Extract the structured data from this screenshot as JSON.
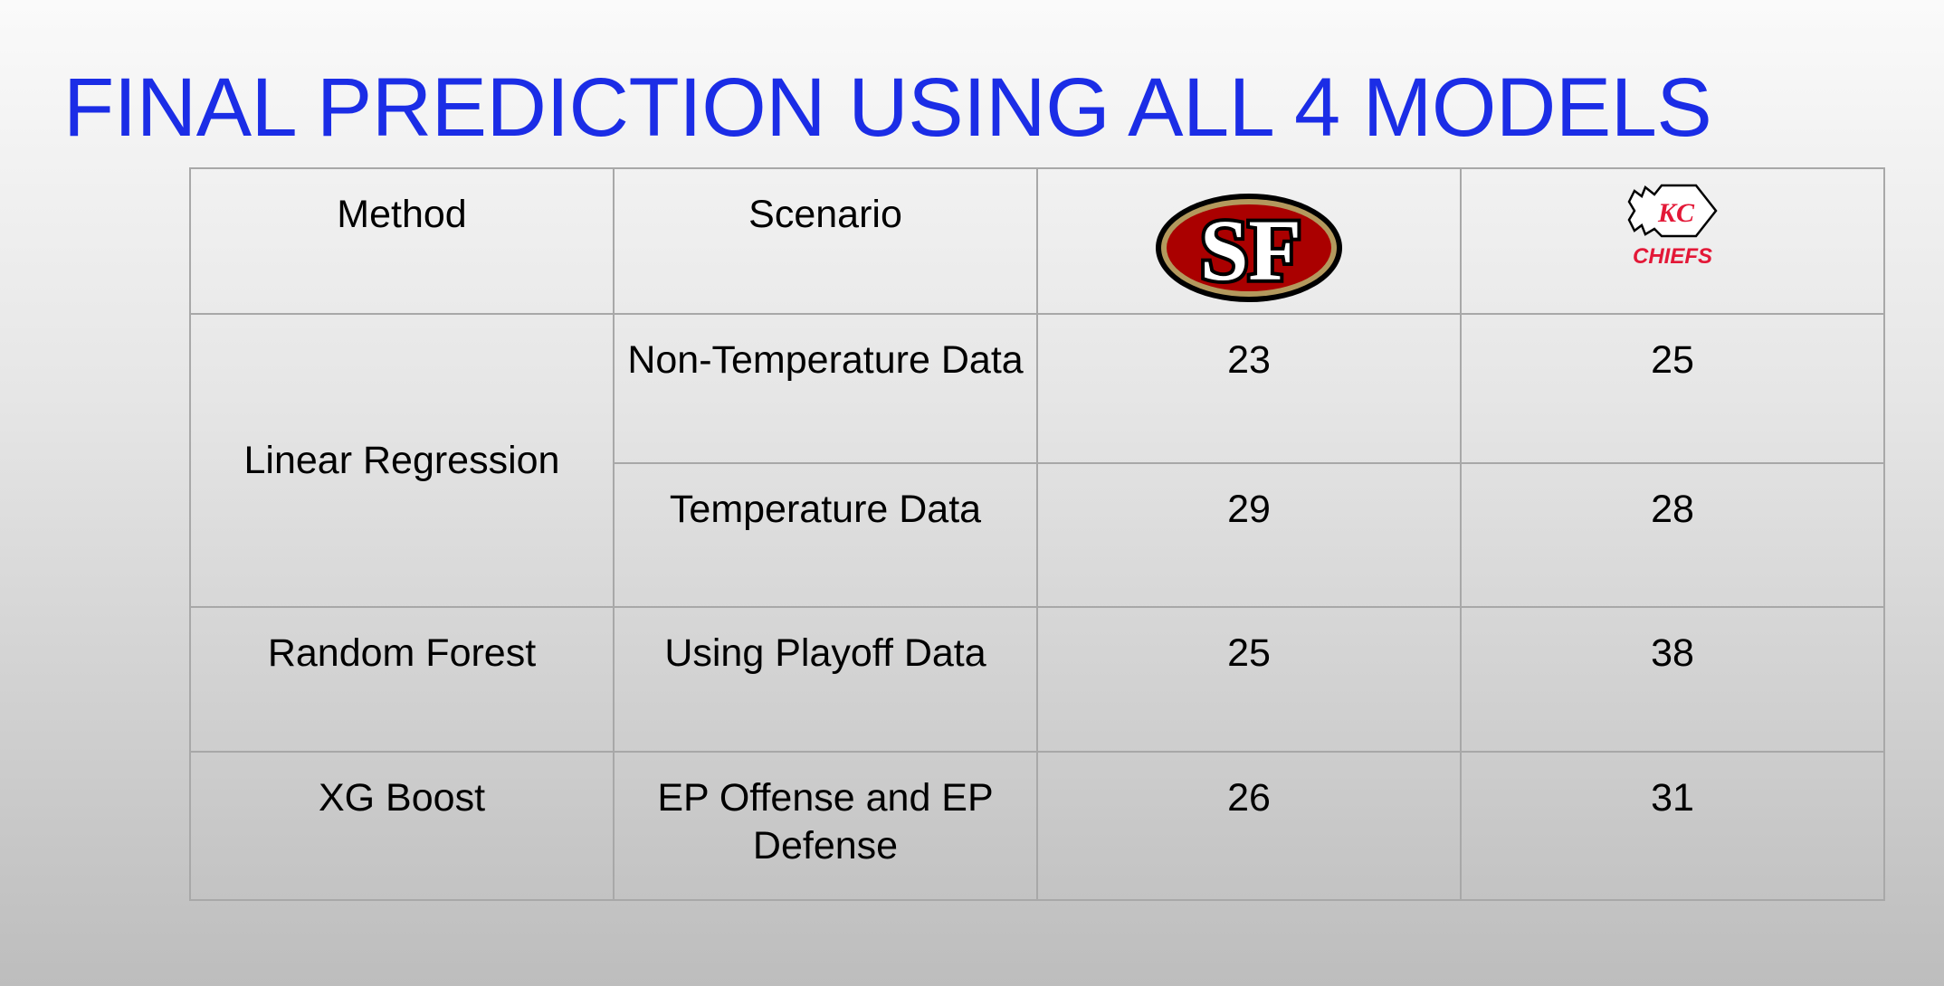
{
  "slide": {
    "title": "FINAL PREDICTION USING ALL 4 MODELS"
  },
  "table": {
    "headers": {
      "method": "Method",
      "scenario": "Scenario",
      "team1_logo": "49ers-logo-icon",
      "team2_logo": "chiefs-logo-icon"
    },
    "chiefs_wordmark": "CHIEFS",
    "sf_monogram": "SF",
    "kc_monogram": "KC",
    "rows": [
      {
        "method": "Linear Regression",
        "scenario": "Non-Temperature Data",
        "team1": "23",
        "team2": "25"
      },
      {
        "method": "Linear Regression",
        "scenario": "Temperature Data",
        "team1": "29",
        "team2": "28"
      },
      {
        "method": "Random Forest",
        "scenario": "Using Playoff Data",
        "team1": "25",
        "team2": "38"
      },
      {
        "method": "XG Boost",
        "scenario": "EP Offense and EP Defense",
        "team1": "26",
        "team2": "31"
      }
    ]
  },
  "colors": {
    "title": "#1b2de6",
    "sf_red": "#aa0000",
    "sf_gold": "#b3995d",
    "kc_red": "#e31837"
  }
}
